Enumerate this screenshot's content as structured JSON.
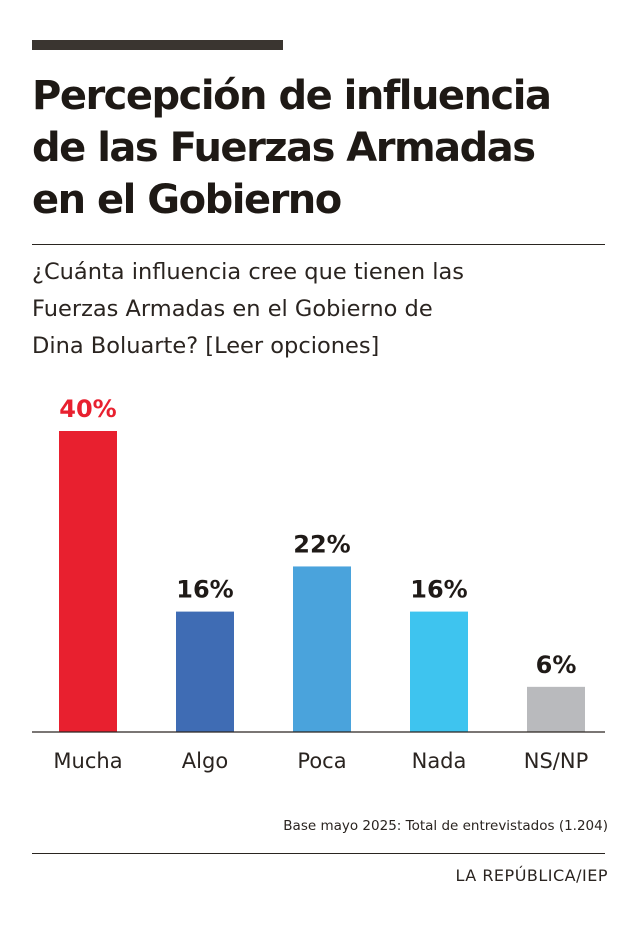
{
  "header": {
    "title": "Percepción de  influencia\nde las Fuerzas Armadas\nen el Gobierno",
    "subtitle": "¿Cuánta influencia cree que tienen las\nFuerzas Armadas en el Gobierno de\nDina Boluarte? [Leer opciones]"
  },
  "chart_data": {
    "type": "bar",
    "categories": [
      "Mucha",
      "Algo",
      "Poca",
      "Nada",
      "NS/NP"
    ],
    "values": [
      40,
      16,
      22,
      16,
      6
    ],
    "data_labels": [
      "40%",
      "16%",
      "22%",
      "16%",
      "6%"
    ],
    "colors": [
      "#e8202f",
      "#3f6cb4",
      "#4aa3dc",
      "#3ec4ef",
      "#b9babd"
    ],
    "label_colors": [
      "#e8202f",
      "#1f1a17",
      "#1f1a17",
      "#1f1a17",
      "#1f1a17"
    ],
    "ylim": [
      0,
      40
    ],
    "grid": false,
    "legend": "none"
  },
  "footer": {
    "source": "Base mayo 2025: Total de entrevistados (1.204)",
    "credit": "LA REPÚBLICA/IEP"
  }
}
